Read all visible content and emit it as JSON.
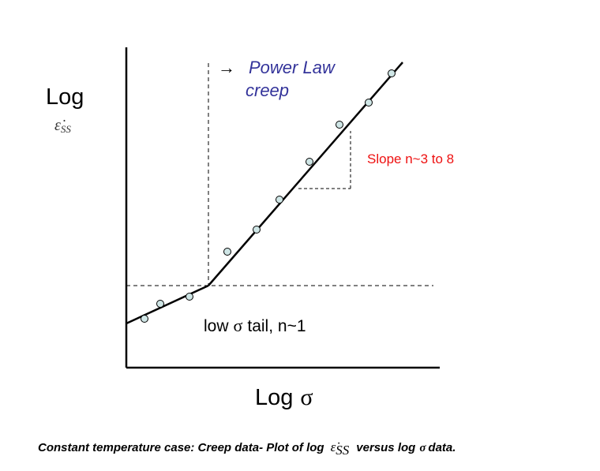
{
  "diagram": {
    "y_axis_label": "Log",
    "y_axis_quantity": "ε̇",
    "y_axis_subscript": "SS",
    "x_axis_label": "Log",
    "x_axis_symbol": "σ",
    "power_law_arrow": "→",
    "power_law_label_line1": "Power Law",
    "power_law_label_line2": "creep",
    "slope_label": "Slope n~3 to 8",
    "low_tail_prefix": "low",
    "low_tail_symbol": "σ",
    "low_tail_suffix": "tail, n~1",
    "caption_part1": "Constant temperature case: Creep data- Plot of log",
    "caption_quantity": "ε̇",
    "caption_subscript": "SS",
    "caption_part2": "versus log",
    "caption_symbol": "σ",
    "caption_part3": "data.",
    "colors": {
      "axes": "#000000",
      "fit_line": "#000000",
      "data_point_fill": "#cfe6e6",
      "data_point_stroke": "#000000",
      "power_law_label": "#33339a",
      "slope_label": "#ee1111"
    }
  }
}
